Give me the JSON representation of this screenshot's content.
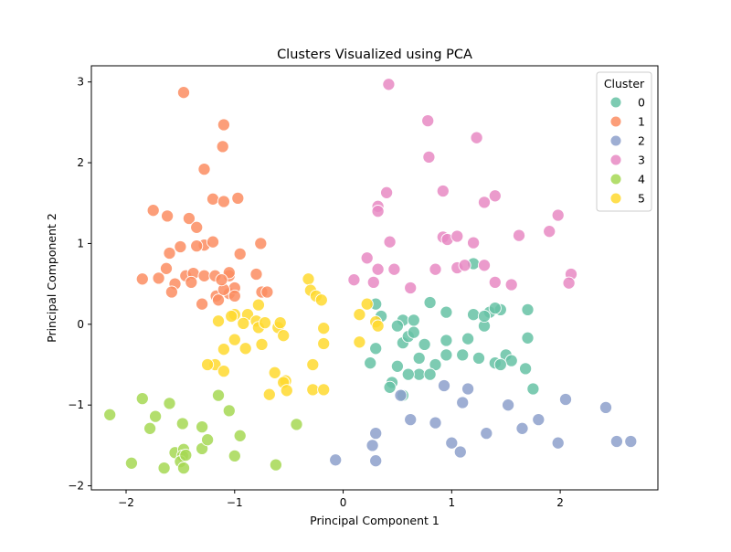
{
  "chart_data": {
    "type": "scatter",
    "title": "Clusters Visualized using PCA",
    "xlabel": "Principal Component 1",
    "ylabel": "Principal Component 2",
    "xlim": [
      -2.32,
      2.9
    ],
    "ylim": [
      -2.05,
      3.2
    ],
    "xticks": [
      -2,
      -1,
      0,
      1,
      2
    ],
    "yticks": [
      -2,
      -1,
      0,
      1,
      2,
      3
    ],
    "grid": false,
    "legend": {
      "title": "Cluster",
      "placement": "top-right"
    },
    "series": [
      {
        "name": "0",
        "color": "#66c2a5",
        "points": [
          [
            0.55,
            0.05
          ],
          [
            0.95,
            0.15
          ],
          [
            1.2,
            0.12
          ],
          [
            1.35,
            0.15
          ],
          [
            0.3,
            0.25
          ],
          [
            0.35,
            0.1
          ],
          [
            0.5,
            -0.02
          ],
          [
            0.65,
            0.05
          ],
          [
            0.8,
            0.27
          ],
          [
            1.7,
            0.18
          ],
          [
            0.55,
            -0.23
          ],
          [
            0.75,
            -0.25
          ],
          [
            0.95,
            -0.2
          ],
          [
            1.15,
            -0.18
          ],
          [
            1.3,
            -0.02
          ],
          [
            1.5,
            -0.38
          ],
          [
            1.55,
            -0.45
          ],
          [
            1.7,
            -0.17
          ],
          [
            0.3,
            -0.3
          ],
          [
            0.6,
            -0.15
          ],
          [
            0.65,
            -0.1
          ],
          [
            0.7,
            -0.42
          ],
          [
            0.85,
            -0.5
          ],
          [
            0.95,
            -0.38
          ],
          [
            1.1,
            -0.38
          ],
          [
            1.25,
            -0.42
          ],
          [
            1.4,
            -0.48
          ],
          [
            1.45,
            -0.5
          ],
          [
            0.5,
            -0.52
          ],
          [
            0.7,
            -0.62
          ],
          [
            0.8,
            -0.62
          ],
          [
            0.6,
            -0.62
          ],
          [
            0.45,
            -0.72
          ],
          [
            0.43,
            -0.78
          ],
          [
            0.55,
            -0.88
          ],
          [
            1.45,
            0.18
          ],
          [
            1.4,
            0.2
          ],
          [
            1.2,
            0.75
          ],
          [
            1.68,
            -0.55
          ],
          [
            1.75,
            -0.8
          ],
          [
            0.25,
            -0.48
          ],
          [
            1.3,
            0.1
          ]
        ]
      },
      {
        "name": "1",
        "color": "#fc8d62",
        "points": [
          [
            -1.47,
            2.87
          ],
          [
            -1.1,
            2.47
          ],
          [
            -1.11,
            2.2
          ],
          [
            -1.28,
            1.92
          ],
          [
            -1.2,
            1.55
          ],
          [
            -1.1,
            1.52
          ],
          [
            -0.97,
            1.56
          ],
          [
            -1.75,
            1.41
          ],
          [
            -1.62,
            1.34
          ],
          [
            -1.42,
            1.31
          ],
          [
            -1.35,
            1.2
          ],
          [
            -1.28,
            0.98
          ],
          [
            -1.5,
            0.96
          ],
          [
            -1.6,
            0.88
          ],
          [
            -1.35,
            0.97
          ],
          [
            -1.2,
            1.02
          ],
          [
            -0.95,
            0.87
          ],
          [
            -0.76,
            1.0
          ],
          [
            -1.63,
            0.69
          ],
          [
            -1.85,
            0.56
          ],
          [
            -1.7,
            0.57
          ],
          [
            -1.55,
            0.5
          ],
          [
            -1.45,
            0.6
          ],
          [
            -1.38,
            0.63
          ],
          [
            -1.28,
            0.6
          ],
          [
            -1.18,
            0.6
          ],
          [
            -1.05,
            0.6
          ],
          [
            -1.05,
            0.64
          ],
          [
            -1.4,
            0.52
          ],
          [
            -0.8,
            0.62
          ],
          [
            -0.75,
            0.4
          ],
          [
            -0.7,
            0.4
          ],
          [
            -1.17,
            0.35
          ],
          [
            -1.15,
            0.3
          ],
          [
            -1.05,
            0.38
          ],
          [
            -1.0,
            0.45
          ],
          [
            -1.1,
            0.43
          ],
          [
            -1.58,
            0.4
          ],
          [
            -1.12,
            0.55
          ],
          [
            -1.0,
            0.35
          ],
          [
            -1.3,
            0.25
          ]
        ]
      },
      {
        "name": "2",
        "color": "#8da0cb",
        "points": [
          [
            2.65,
            -1.45
          ],
          [
            2.52,
            -1.45
          ],
          [
            2.42,
            -1.03
          ],
          [
            2.05,
            -0.93
          ],
          [
            1.98,
            -1.47
          ],
          [
            1.8,
            -1.18
          ],
          [
            1.65,
            -1.29
          ],
          [
            1.52,
            -1.0
          ],
          [
            1.32,
            -1.35
          ],
          [
            1.1,
            -0.97
          ],
          [
            1.15,
            -0.8
          ],
          [
            1.08,
            -1.58
          ],
          [
            1.0,
            -1.47
          ],
          [
            0.85,
            -1.22
          ],
          [
            0.62,
            -1.18
          ],
          [
            0.3,
            -1.35
          ],
          [
            0.27,
            -1.5
          ],
          [
            0.3,
            -1.69
          ],
          [
            -0.07,
            -1.68
          ],
          [
            0.53,
            -0.88
          ],
          [
            0.93,
            -0.76
          ]
        ]
      },
      {
        "name": "3",
        "color": "#e78ac3",
        "points": [
          [
            0.42,
            2.97
          ],
          [
            0.78,
            2.52
          ],
          [
            1.23,
            2.31
          ],
          [
            0.79,
            2.07
          ],
          [
            0.4,
            1.63
          ],
          [
            0.92,
            1.65
          ],
          [
            1.4,
            1.59
          ],
          [
            1.3,
            1.51
          ],
          [
            0.32,
            1.46
          ],
          [
            0.32,
            1.4
          ],
          [
            1.98,
            1.35
          ],
          [
            1.62,
            1.1
          ],
          [
            1.9,
            1.15
          ],
          [
            0.92,
            1.08
          ],
          [
            0.96,
            1.05
          ],
          [
            1.05,
            1.09
          ],
          [
            1.2,
            1.01
          ],
          [
            0.43,
            1.02
          ],
          [
            0.22,
            0.82
          ],
          [
            0.85,
            0.68
          ],
          [
            1.05,
            0.7
          ],
          [
            1.12,
            0.73
          ],
          [
            1.3,
            0.73
          ],
          [
            0.32,
            0.68
          ],
          [
            0.47,
            0.68
          ],
          [
            0.1,
            0.55
          ],
          [
            0.28,
            0.52
          ],
          [
            2.1,
            0.62
          ],
          [
            2.08,
            0.51
          ],
          [
            1.4,
            0.52
          ],
          [
            1.55,
            0.49
          ],
          [
            0.62,
            0.45
          ]
        ]
      },
      {
        "name": "4",
        "color": "#a6d854",
        "points": [
          [
            -2.15,
            -1.12
          ],
          [
            -1.85,
            -0.92
          ],
          [
            -1.78,
            -1.29
          ],
          [
            -1.73,
            -1.14
          ],
          [
            -1.6,
            -0.98
          ],
          [
            -1.48,
            -1.23
          ],
          [
            -1.55,
            -1.59
          ],
          [
            -1.47,
            -1.55
          ],
          [
            -1.48,
            -1.63
          ],
          [
            -1.5,
            -1.7
          ],
          [
            -1.47,
            -1.78
          ],
          [
            -1.45,
            -1.62
          ],
          [
            -1.65,
            -1.78
          ],
          [
            -1.95,
            -1.72
          ],
          [
            -1.3,
            -1.27
          ],
          [
            -1.3,
            -1.54
          ],
          [
            -1.25,
            -1.43
          ],
          [
            -1.15,
            -0.88
          ],
          [
            -1.05,
            -1.07
          ],
          [
            -1.0,
            -1.63
          ],
          [
            -0.95,
            -1.38
          ],
          [
            -0.62,
            -1.74
          ],
          [
            -0.43,
            -1.24
          ]
        ]
      },
      {
        "name": "5",
        "color": "#ffd92f",
        "points": [
          [
            -0.32,
            0.56
          ],
          [
            -0.3,
            0.42
          ],
          [
            -0.25,
            0.35
          ],
          [
            -0.2,
            0.3
          ],
          [
            -0.78,
            0.24
          ],
          [
            -0.88,
            0.12
          ],
          [
            -1.0,
            0.12
          ],
          [
            -1.03,
            0.1
          ],
          [
            -1.15,
            0.04
          ],
          [
            -0.92,
            0.01
          ],
          [
            -0.8,
            0.04
          ],
          [
            -0.78,
            -0.04
          ],
          [
            -0.72,
            0.02
          ],
          [
            -0.6,
            -0.04
          ],
          [
            -0.58,
            0.02
          ],
          [
            -0.55,
            -0.14
          ],
          [
            -0.18,
            -0.05
          ],
          [
            -0.18,
            -0.24
          ],
          [
            -1.0,
            -0.19
          ],
          [
            -0.75,
            -0.25
          ],
          [
            -0.9,
            -0.3
          ],
          [
            -1.1,
            -0.31
          ],
          [
            -1.18,
            -0.5
          ],
          [
            -1.25,
            -0.5
          ],
          [
            -1.1,
            -0.58
          ],
          [
            -0.63,
            -0.6
          ],
          [
            -0.53,
            -0.7
          ],
          [
            -0.55,
            -0.72
          ],
          [
            -0.52,
            -0.82
          ],
          [
            -0.28,
            -0.5
          ],
          [
            -0.28,
            -0.81
          ],
          [
            -0.18,
            -0.81
          ],
          [
            -0.68,
            -0.87
          ],
          [
            0.22,
            0.25
          ],
          [
            0.15,
            0.12
          ],
          [
            0.3,
            0.03
          ],
          [
            0.32,
            -0.02
          ],
          [
            0.15,
            -0.22
          ]
        ]
      }
    ]
  }
}
